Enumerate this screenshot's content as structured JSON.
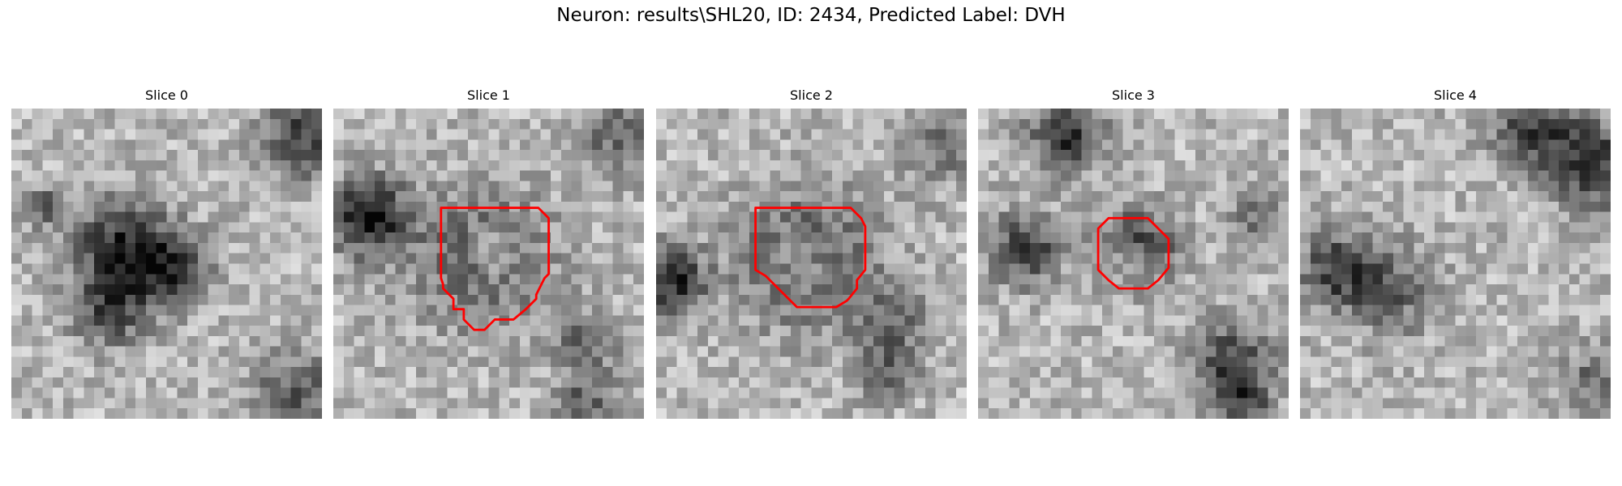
{
  "figure": {
    "title": "Neuron: results\\SHL20, ID: 2434, Predicted Label: DVH"
  },
  "style": {
    "contour_color": "#ff0000"
  },
  "slices": [
    {
      "title": "Slice 0",
      "has_contour": false
    },
    {
      "title": "Slice 1",
      "has_contour": true
    },
    {
      "title": "Slice 2",
      "has_contour": true
    },
    {
      "title": "Slice 3",
      "has_contour": true
    },
    {
      "title": "Slice 4",
      "has_contour": false
    }
  ]
}
